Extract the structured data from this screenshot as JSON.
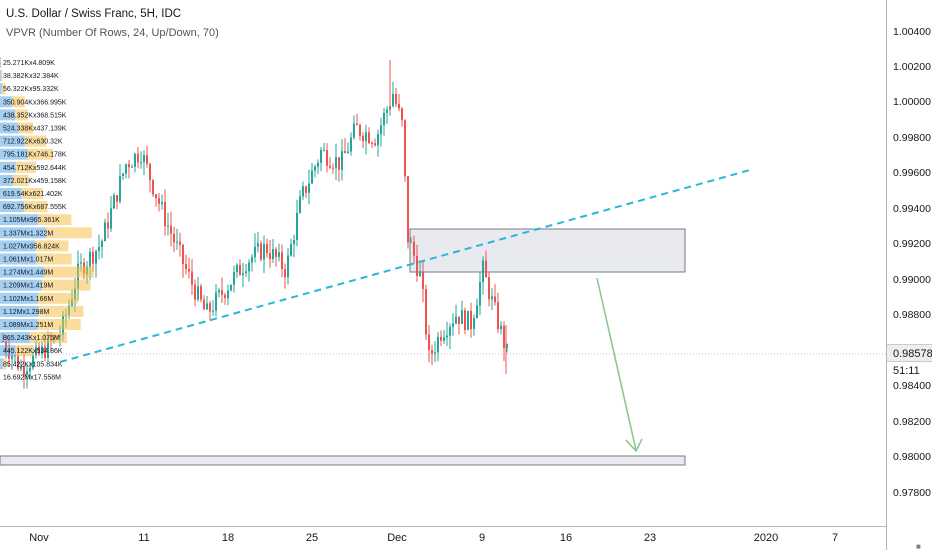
{
  "symbol_title": "U.S. Dollar / Swiss Franc, 5H, IDC",
  "indicator": "VPVR (Number Of Rows, 24, Up/Down, 70)",
  "price_axis": {
    "ticks": [
      "1.00400",
      "1.00200",
      "1.00000",
      "0.99800",
      "0.99600",
      "0.99400",
      "0.99200",
      "0.99000",
      "0.98800",
      "0.98400",
      "0.98200",
      "0.98000",
      "0.97800"
    ],
    "current_price": "0.98578",
    "countdown": "51:11"
  },
  "time_axis": {
    "labels": [
      "Nov",
      "11",
      "18",
      "25",
      "Dec",
      "9",
      "16",
      "23",
      "2020",
      "7"
    ]
  },
  "volume_profile_labels": [
    "25.271Kx4.809K",
    "38.382Kx32.384K",
    "56.322Kx95.332K",
    "350.904Kx366.995K",
    "438.352Kx368.515K",
    "524.338Kx437.139K",
    "712.922Kx630.32K",
    "795.181Kx746.178K",
    "454.712Kx592.644K",
    "372.021Kx459.158K",
    "619.54Kx621.402K",
    "692.756Kx687.555K",
    "1.105Mx965.361K",
    "1.337Mx1.322M",
    "1.027Mx956.824K",
    "1.061Mx1.017M",
    "1.274Mx1.449M",
    "1.209Mx1.419M",
    "1.102Mx1.166M",
    "1.12Mx1.298M",
    "1.089Mx1.251M",
    "865.243Kx1.075M",
    "445.122Kx534.86K",
    "85.422Kx105.834K",
    "16.692Mx17.558M"
  ],
  "colors": {
    "candle_up": "#26a69a",
    "candle_down": "#ef5350",
    "trendline": "#29b6d8",
    "arrow": "#8cc98f",
    "zone_fill": "#e9eaf0",
    "zone_border": "#787b86",
    "vp_up": "#5aa7e6",
    "vp_down": "#f5c04a"
  },
  "icons": {
    "corner_settings": "settings-icon"
  }
}
